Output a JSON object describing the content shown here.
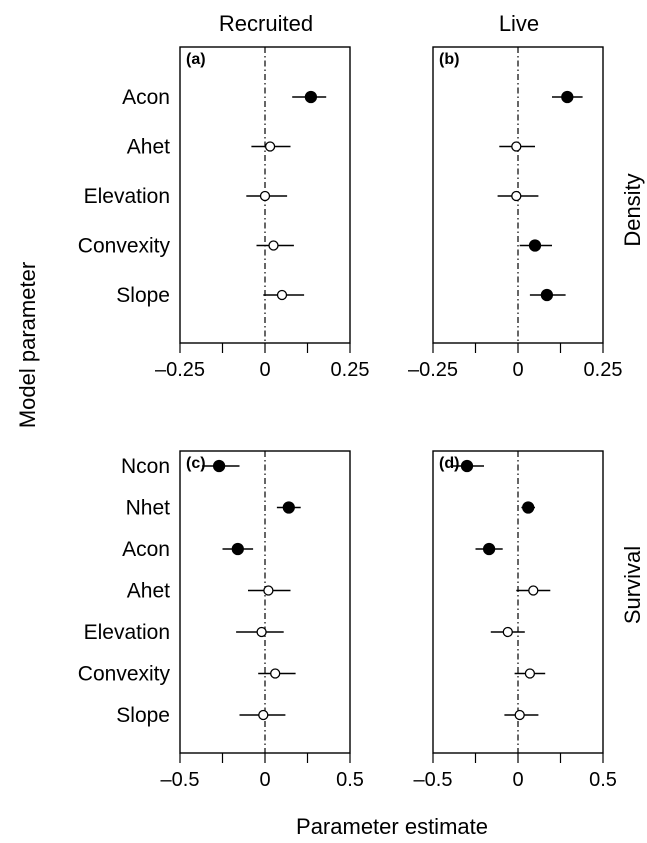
{
  "figure": {
    "y_axis_title": "Model parameter",
    "x_axis_title": "Parameter estimate",
    "column_titles": [
      "Recruited",
      "Live"
    ],
    "row_titles": [
      "Density",
      "Survival"
    ]
  },
  "chart_data": [
    {
      "type": "scatter",
      "panel": "(a)",
      "column": "Recruited",
      "row": "Density",
      "xlim": [
        -0.25,
        0.25
      ],
      "xticks": [
        -0.25,
        0,
        0.25
      ],
      "xtick_labels": [
        "–0.25",
        "0",
        "0.25"
      ],
      "reference_line": 0,
      "points": [
        {
          "label": "Acon",
          "estimate": 0.135,
          "ci": [
            0.08,
            0.18
          ],
          "significant": true
        },
        {
          "label": "Ahet",
          "estimate": 0.015,
          "ci": [
            -0.04,
            0.075
          ],
          "significant": false
        },
        {
          "label": "Elevation",
          "estimate": 0.0,
          "ci": [
            -0.055,
            0.065
          ],
          "significant": false
        },
        {
          "label": "Convexity",
          "estimate": 0.025,
          "ci": [
            -0.025,
            0.085
          ],
          "significant": false
        },
        {
          "label": "Slope",
          "estimate": 0.05,
          "ci": [
            -0.005,
            0.115
          ],
          "significant": false
        }
      ]
    },
    {
      "type": "scatter",
      "panel": "(b)",
      "column": "Live",
      "row": "Density",
      "xlim": [
        -0.25,
        0.25
      ],
      "xticks": [
        -0.25,
        0,
        0.25
      ],
      "xtick_labels": [
        "–0.25",
        "0",
        "0.25"
      ],
      "reference_line": 0,
      "points": [
        {
          "label": "Acon",
          "estimate": 0.145,
          "ci": [
            0.1,
            0.19
          ],
          "significant": true
        },
        {
          "label": "Ahet",
          "estimate": -0.005,
          "ci": [
            -0.055,
            0.05
          ],
          "significant": false
        },
        {
          "label": "Elevation",
          "estimate": -0.005,
          "ci": [
            -0.06,
            0.06
          ],
          "significant": false
        },
        {
          "label": "Convexity",
          "estimate": 0.05,
          "ci": [
            0.005,
            0.1
          ],
          "significant": true
        },
        {
          "label": "Slope",
          "estimate": 0.085,
          "ci": [
            0.035,
            0.14
          ],
          "significant": true
        }
      ]
    },
    {
      "type": "scatter",
      "panel": "(c)",
      "column": "Recruited",
      "row": "Survival",
      "xlim": [
        -0.5,
        0.5
      ],
      "xticks": [
        -0.5,
        0,
        0.5
      ],
      "xtick_labels": [
        "–0.5",
        "0",
        "0.5"
      ],
      "reference_line": 0,
      "points": [
        {
          "label": "Ncon",
          "estimate": -0.27,
          "ci": [
            -0.37,
            -0.15
          ],
          "significant": true
        },
        {
          "label": "Nhet",
          "estimate": 0.14,
          "ci": [
            0.07,
            0.21
          ],
          "significant": true
        },
        {
          "label": "Acon",
          "estimate": -0.16,
          "ci": [
            -0.25,
            -0.07
          ],
          "significant": true
        },
        {
          "label": "Ahet",
          "estimate": 0.02,
          "ci": [
            -0.1,
            0.15
          ],
          "significant": false
        },
        {
          "label": "Elevation",
          "estimate": -0.02,
          "ci": [
            -0.17,
            0.11
          ],
          "significant": false
        },
        {
          "label": "Convexity",
          "estimate": 0.06,
          "ci": [
            -0.04,
            0.18
          ],
          "significant": false
        },
        {
          "label": "Slope",
          "estimate": -0.01,
          "ci": [
            -0.15,
            0.12
          ],
          "significant": false
        }
      ]
    },
    {
      "type": "scatter",
      "panel": "(d)",
      "column": "Live",
      "row": "Survival",
      "xlim": [
        -0.5,
        0.5
      ],
      "xticks": [
        -0.5,
        0,
        0.5
      ],
      "xtick_labels": [
        "–0.5",
        "0",
        "0.5"
      ],
      "reference_line": 0,
      "points": [
        {
          "label": "Ncon",
          "estimate": -0.3,
          "ci": [
            -0.39,
            -0.2
          ],
          "significant": true
        },
        {
          "label": "Nhet",
          "estimate": 0.06,
          "ci": [
            0.02,
            0.1
          ],
          "significant": true
        },
        {
          "label": "Acon",
          "estimate": -0.17,
          "ci": [
            -0.25,
            -0.09
          ],
          "significant": true
        },
        {
          "label": "Ahet",
          "estimate": 0.09,
          "ci": [
            -0.01,
            0.19
          ],
          "significant": false
        },
        {
          "label": "Elevation",
          "estimate": -0.06,
          "ci": [
            -0.16,
            0.04
          ],
          "significant": false
        },
        {
          "label": "Convexity",
          "estimate": 0.07,
          "ci": [
            -0.02,
            0.16
          ],
          "significant": false
        },
        {
          "label": "Slope",
          "estimate": 0.01,
          "ci": [
            -0.08,
            0.12
          ],
          "significant": false
        }
      ]
    }
  ],
  "colors": {
    "filled_marker": "#000000",
    "open_marker_fill": "#ffffff",
    "line": "#000000"
  }
}
